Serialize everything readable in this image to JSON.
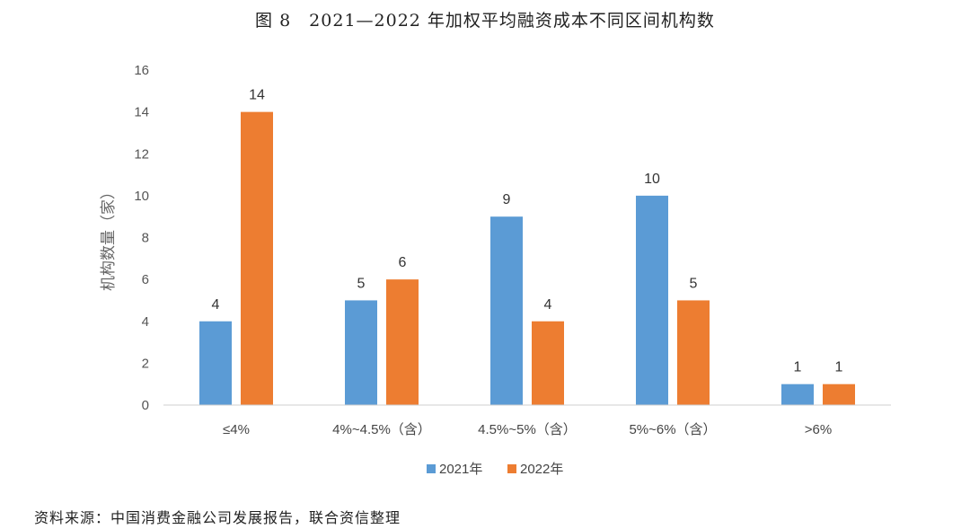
{
  "title": "图 8　2021—2022 年加权平均融资成本不同区间机构数",
  "source": "资料来源：中国消费金融公司发展报告，联合资信整理",
  "chart_data": {
    "type": "bar",
    "categories": [
      "≤4%",
      "4%~4.5%（含）",
      "4.5%~5%（含）",
      "5%~6%（含）",
      ">6%"
    ],
    "series": [
      {
        "name": "2021年",
        "values": [
          4,
          5,
          9,
          10,
          1
        ],
        "color": "#5B9BD5"
      },
      {
        "name": "2022年",
        "values": [
          14,
          6,
          4,
          5,
          1
        ],
        "color": "#ED7D31"
      }
    ],
    "ylabel": "机构数量（家）",
    "ylim": [
      0,
      16
    ],
    "yticks": [
      0,
      2,
      4,
      6,
      8,
      10,
      12,
      14,
      16
    ],
    "grid": false,
    "legend": "bottom"
  }
}
